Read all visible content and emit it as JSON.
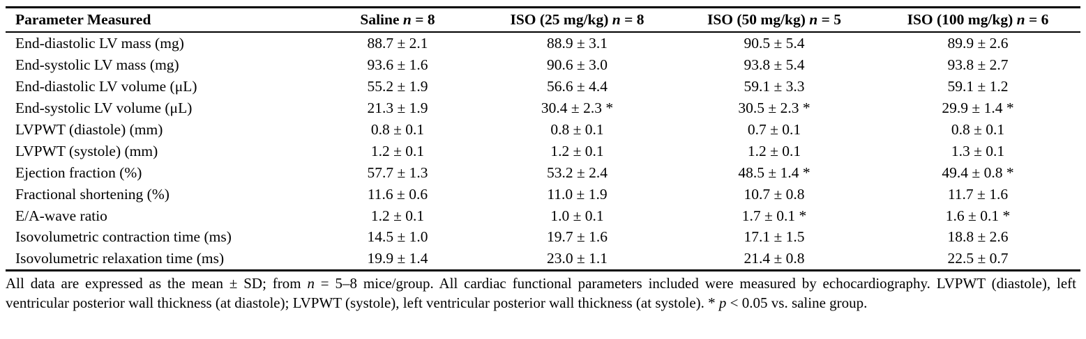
{
  "table": {
    "headers": [
      {
        "pre": "Parameter Measured",
        "italic": "",
        "post": ""
      },
      {
        "pre": "Saline ",
        "italic": "n",
        "post": " = 8"
      },
      {
        "pre": "ISO (25 mg/kg) ",
        "italic": "n",
        "post": " = 8"
      },
      {
        "pre": "ISO (50 mg/kg) ",
        "italic": "n",
        "post": " = 5"
      },
      {
        "pre": "ISO (100 mg/kg) ",
        "italic": "n",
        "post": " = 6"
      }
    ],
    "rows": [
      {
        "param": "End-diastolic LV mass (mg)",
        "values": [
          "88.7 ± 2.1",
          "88.9 ± 3.1",
          "90.5 ± 5.4",
          "89.9 ± 2.6"
        ]
      },
      {
        "param": "End-systolic LV mass (mg)",
        "values": [
          "93.6 ± 1.6",
          "90.6 ± 3.0",
          "93.8 ± 5.4",
          "93.8 ± 2.7"
        ]
      },
      {
        "param": "End-diastolic LV volume (μL)",
        "values": [
          "55.2 ± 1.9",
          "56.6 ± 4.4",
          "59.1 ± 3.3",
          "59.1 ± 1.2"
        ]
      },
      {
        "param": "End-systolic LV volume (μL)",
        "values": [
          "21.3 ± 1.9",
          "30.4 ± 2.3 *",
          "30.5 ± 2.3 *",
          "29.9 ± 1.4 *"
        ]
      },
      {
        "param": "LVPWT (diastole) (mm)",
        "values": [
          "0.8 ± 0.1",
          "0.8 ± 0.1",
          "0.7 ± 0.1",
          "0.8 ± 0.1"
        ]
      },
      {
        "param": "LVPWT (systole) (mm)",
        "values": [
          "1.2 ± 0.1",
          "1.2 ± 0.1",
          "1.2 ± 0.1",
          "1.3 ± 0.1"
        ]
      },
      {
        "param": "Ejection fraction (%)",
        "values": [
          "57.7 ± 1.3",
          "53.2 ± 2.4",
          "48.5 ± 1.4 *",
          "49.4 ± 0.8 *"
        ]
      },
      {
        "param": "Fractional shortening (%)",
        "values": [
          "11.6 ± 0.6",
          "11.0 ± 1.9",
          "10.7 ± 0.8",
          "11.7 ± 1.6"
        ]
      },
      {
        "param": "E/A-wave ratio",
        "values": [
          "1.2 ± 0.1",
          "1.0 ± 0.1",
          "1.7 ± 0.1 *",
          "1.6 ± 0.1 *"
        ]
      },
      {
        "param": "Isovolumetric contraction time (ms)",
        "values": [
          "14.5 ± 1.0",
          "19.7 ± 1.6",
          "17.1 ± 1.5",
          "18.8 ± 2.6"
        ]
      },
      {
        "param": "Isovolumetric relaxation time (ms)",
        "values": [
          "19.9 ± 1.4",
          "23.0 ± 1.1",
          "21.4 ± 0.8",
          "22.5 ± 0.7"
        ]
      }
    ]
  },
  "footnote": {
    "part1": "All data are expressed as the mean ± SD; from ",
    "n_italic": "n",
    "part2": " = 5–8 mice/group. All cardiac functional parameters included were measured by echocardiography. LVPWT (diastole), left ventricular posterior wall thickness (at diastole); LVPWT (systole), left ventricular posterior wall thickness (at systole). * ",
    "p_italic": "p",
    "part3": " < 0.05 vs. saline group."
  }
}
